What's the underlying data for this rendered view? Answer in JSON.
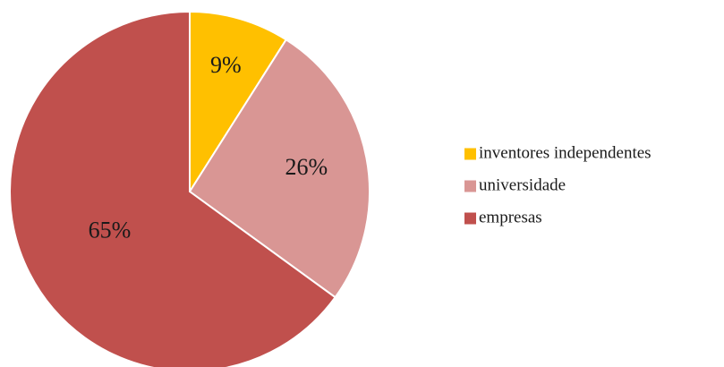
{
  "chart_data": {
    "type": "pie",
    "categories": [
      "inventores independentes",
      "universidade",
      "empresas"
    ],
    "values": [
      9,
      26,
      65
    ],
    "data_labels": [
      "9%",
      "26%",
      "65%"
    ],
    "colors": [
      "#FFC000",
      "#D99694",
      "#C0504D"
    ],
    "start_angle_deg": 0,
    "direction": "clockwise",
    "legend_position": "right"
  }
}
